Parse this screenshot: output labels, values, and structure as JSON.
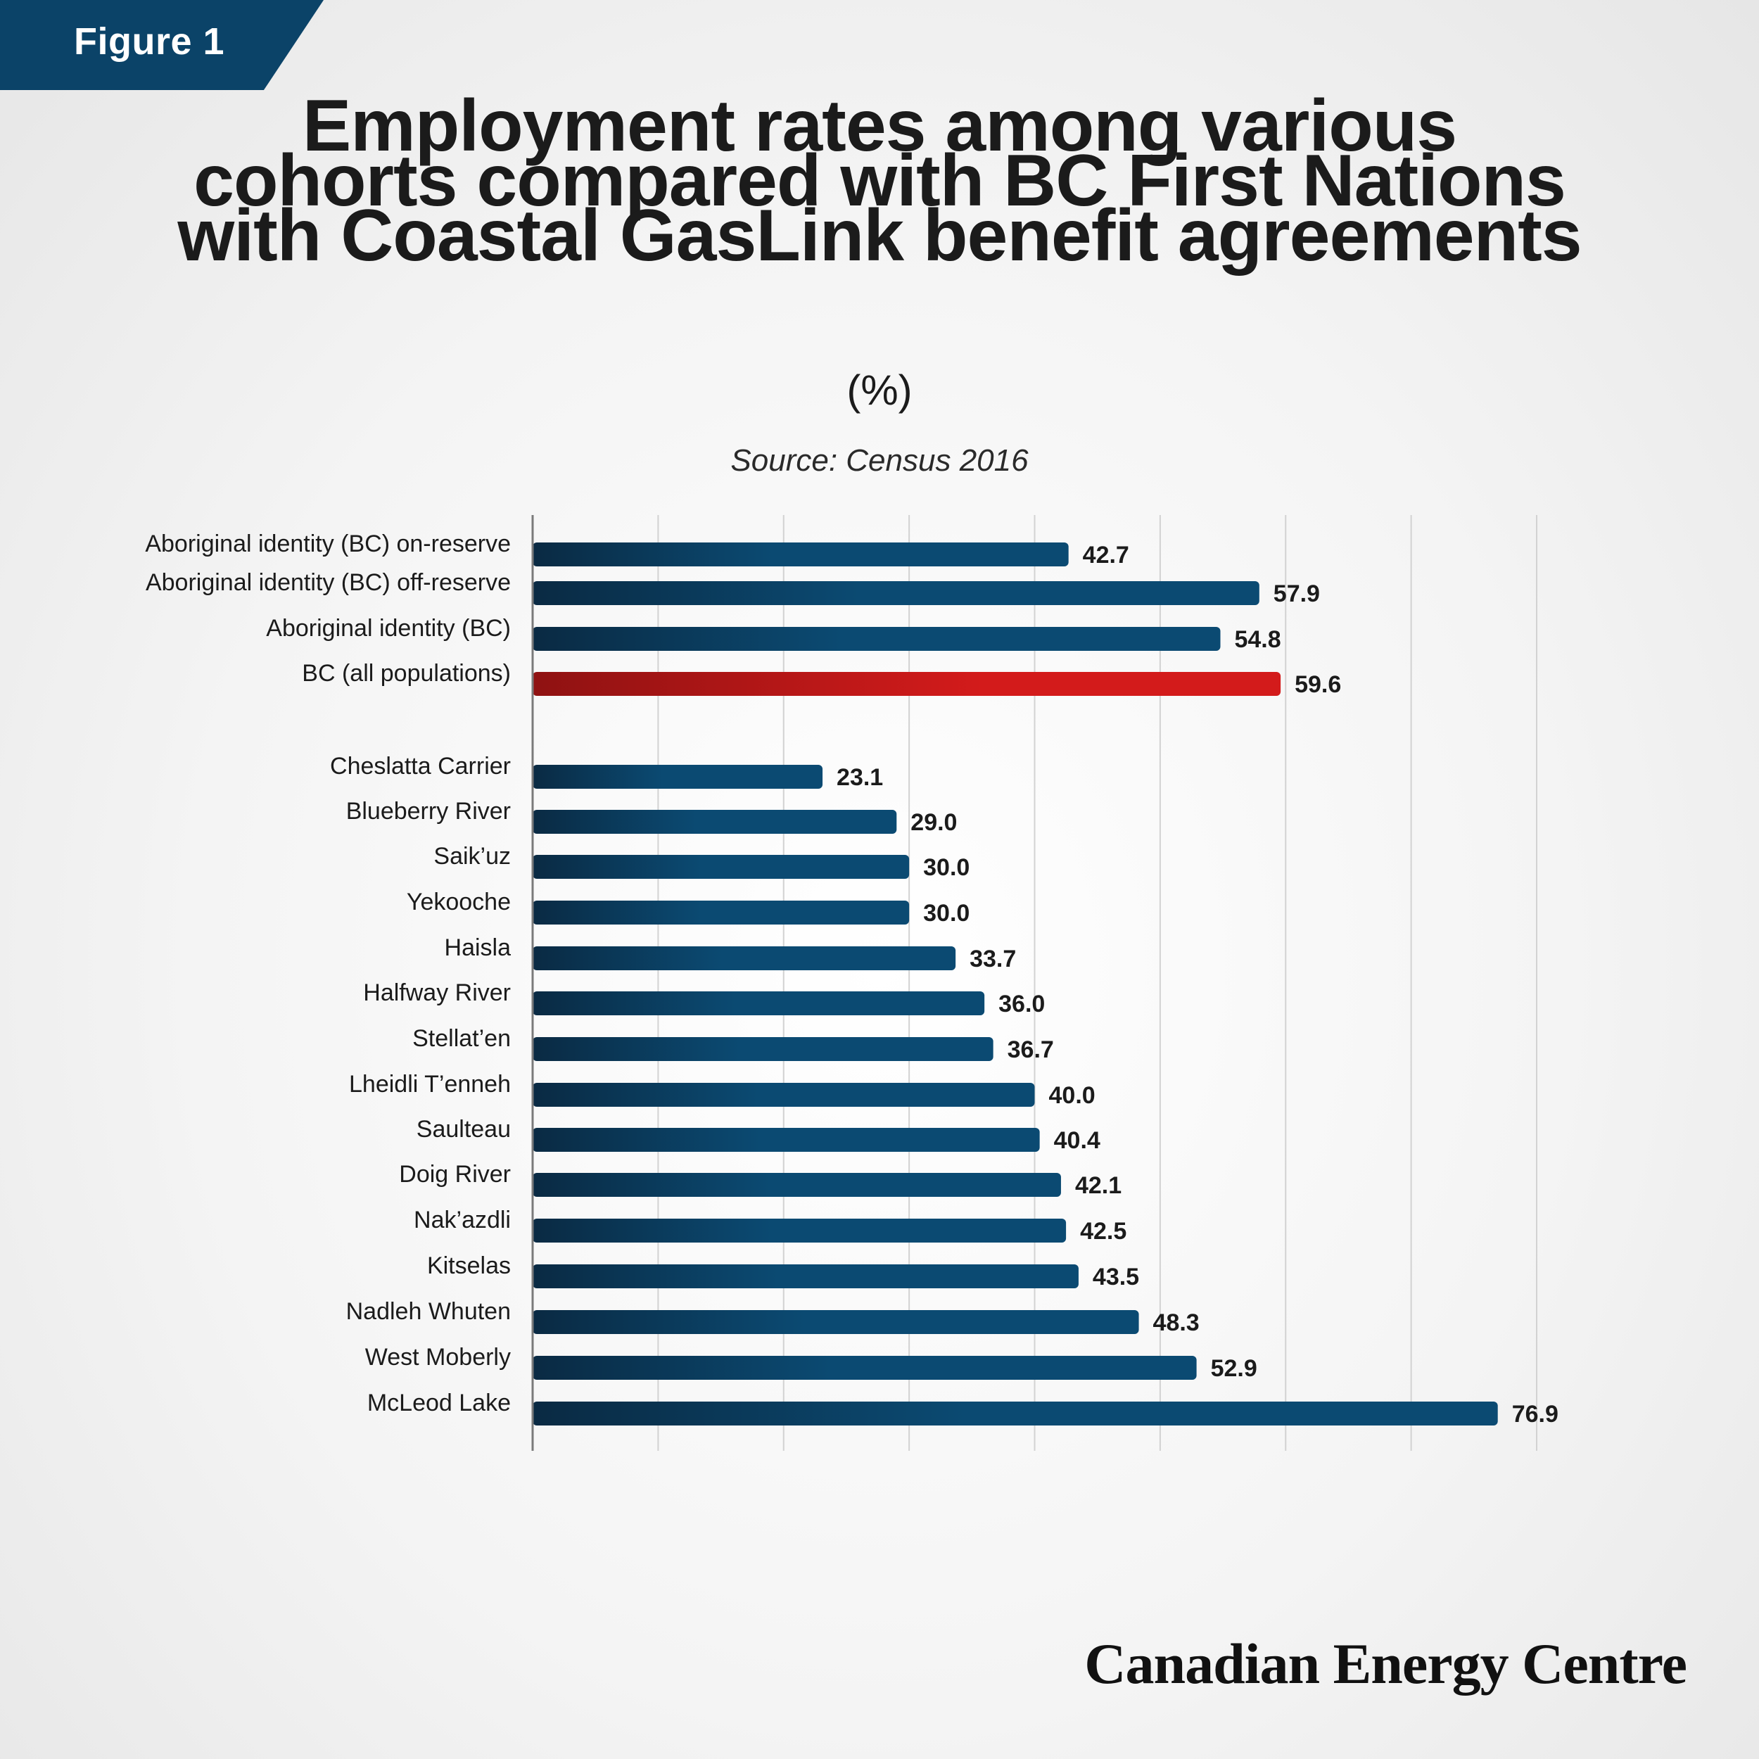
{
  "figure_label": "Figure 1",
  "title_lines": [
    "Employment rates among various",
    "cohorts compared with BC First Nations",
    "with Coastal GasLink benefit agreements"
  ],
  "unit": "(%)",
  "source": "Source: Census 2016",
  "brand": "Canadian Energy Centre",
  "colors": {
    "bar_dark": "#0a2a43",
    "bar_light": "#0b4a72",
    "highlight_dark": "#8f1212",
    "highlight_light": "#d31b1b",
    "gridline": "#d2d2d2",
    "axis": "#7a7a7a",
    "tab": "#0b4368"
  },
  "chart_data": {
    "type": "bar",
    "orientation": "horizontal",
    "categories": [
      "Aboriginal identity (BC) on-reserve",
      "Aboriginal identity (BC) off-reserve",
      "Aboriginal identity (BC)",
      "BC (all populations)",
      "Cheslatta Carrier",
      "Blueberry River",
      "Saik’uz",
      "Yekooche",
      "Haisla",
      "Halfway River",
      "Stellat’en",
      "Lheidli T’enneh",
      "Saulteau",
      "Doig River",
      "Nak’azdli",
      "Kitselas",
      "Nadleh Whuten",
      "West Moberly",
      "McLeod Lake"
    ],
    "values": [
      42.7,
      57.9,
      54.8,
      59.6,
      23.1,
      29.0,
      30.0,
      30.0,
      33.7,
      36.0,
      36.7,
      40.0,
      40.4,
      42.1,
      42.5,
      43.5,
      48.3,
      52.9,
      76.9
    ],
    "value_labels": [
      "42.7",
      "57.9",
      "54.8",
      "59.6",
      "23.1",
      "29.0",
      "30.0",
      "30.0",
      "33.7",
      "36.0",
      "36.7",
      "40.0",
      "40.4",
      "42.1",
      "42.5",
      "43.5",
      "48.3",
      "52.9",
      "76.9"
    ],
    "highlight": [
      "BC (all populations)"
    ],
    "xlim": [
      0,
      80
    ],
    "grid_step": 10,
    "grid": true,
    "tick_labels_visible": false,
    "title": "Employment rates among various cohorts compared with BC First Nations with Coastal GasLink benefit agreements",
    "subtitle": "(%)",
    "xlabel": "",
    "ylabel": ""
  }
}
